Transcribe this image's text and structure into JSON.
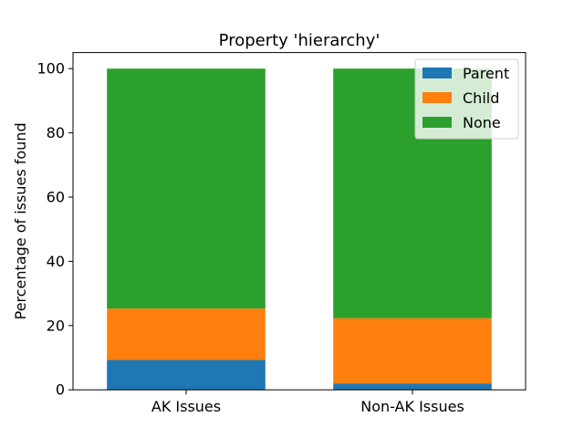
{
  "chart_data": {
    "type": "bar",
    "stacked": true,
    "title": "Property 'hierarchy'",
    "xlabel": "",
    "ylabel": "Percentage of issues found",
    "categories": [
      "AK Issues",
      "Non-AK Issues"
    ],
    "series": [
      {
        "name": "Parent",
        "values": [
          9.3,
          2.0
        ],
        "color": "#1f77b4"
      },
      {
        "name": "Child",
        "values": [
          16.0,
          20.3
        ],
        "color": "#ff7f0e"
      },
      {
        "name": "None",
        "values": [
          74.7,
          77.7
        ],
        "color": "#2ca02c"
      }
    ],
    "ylim": [
      0,
      105
    ],
    "yticks": [
      0,
      20,
      40,
      60,
      80,
      100
    ],
    "grid": false,
    "legend_position": "upper right"
  }
}
